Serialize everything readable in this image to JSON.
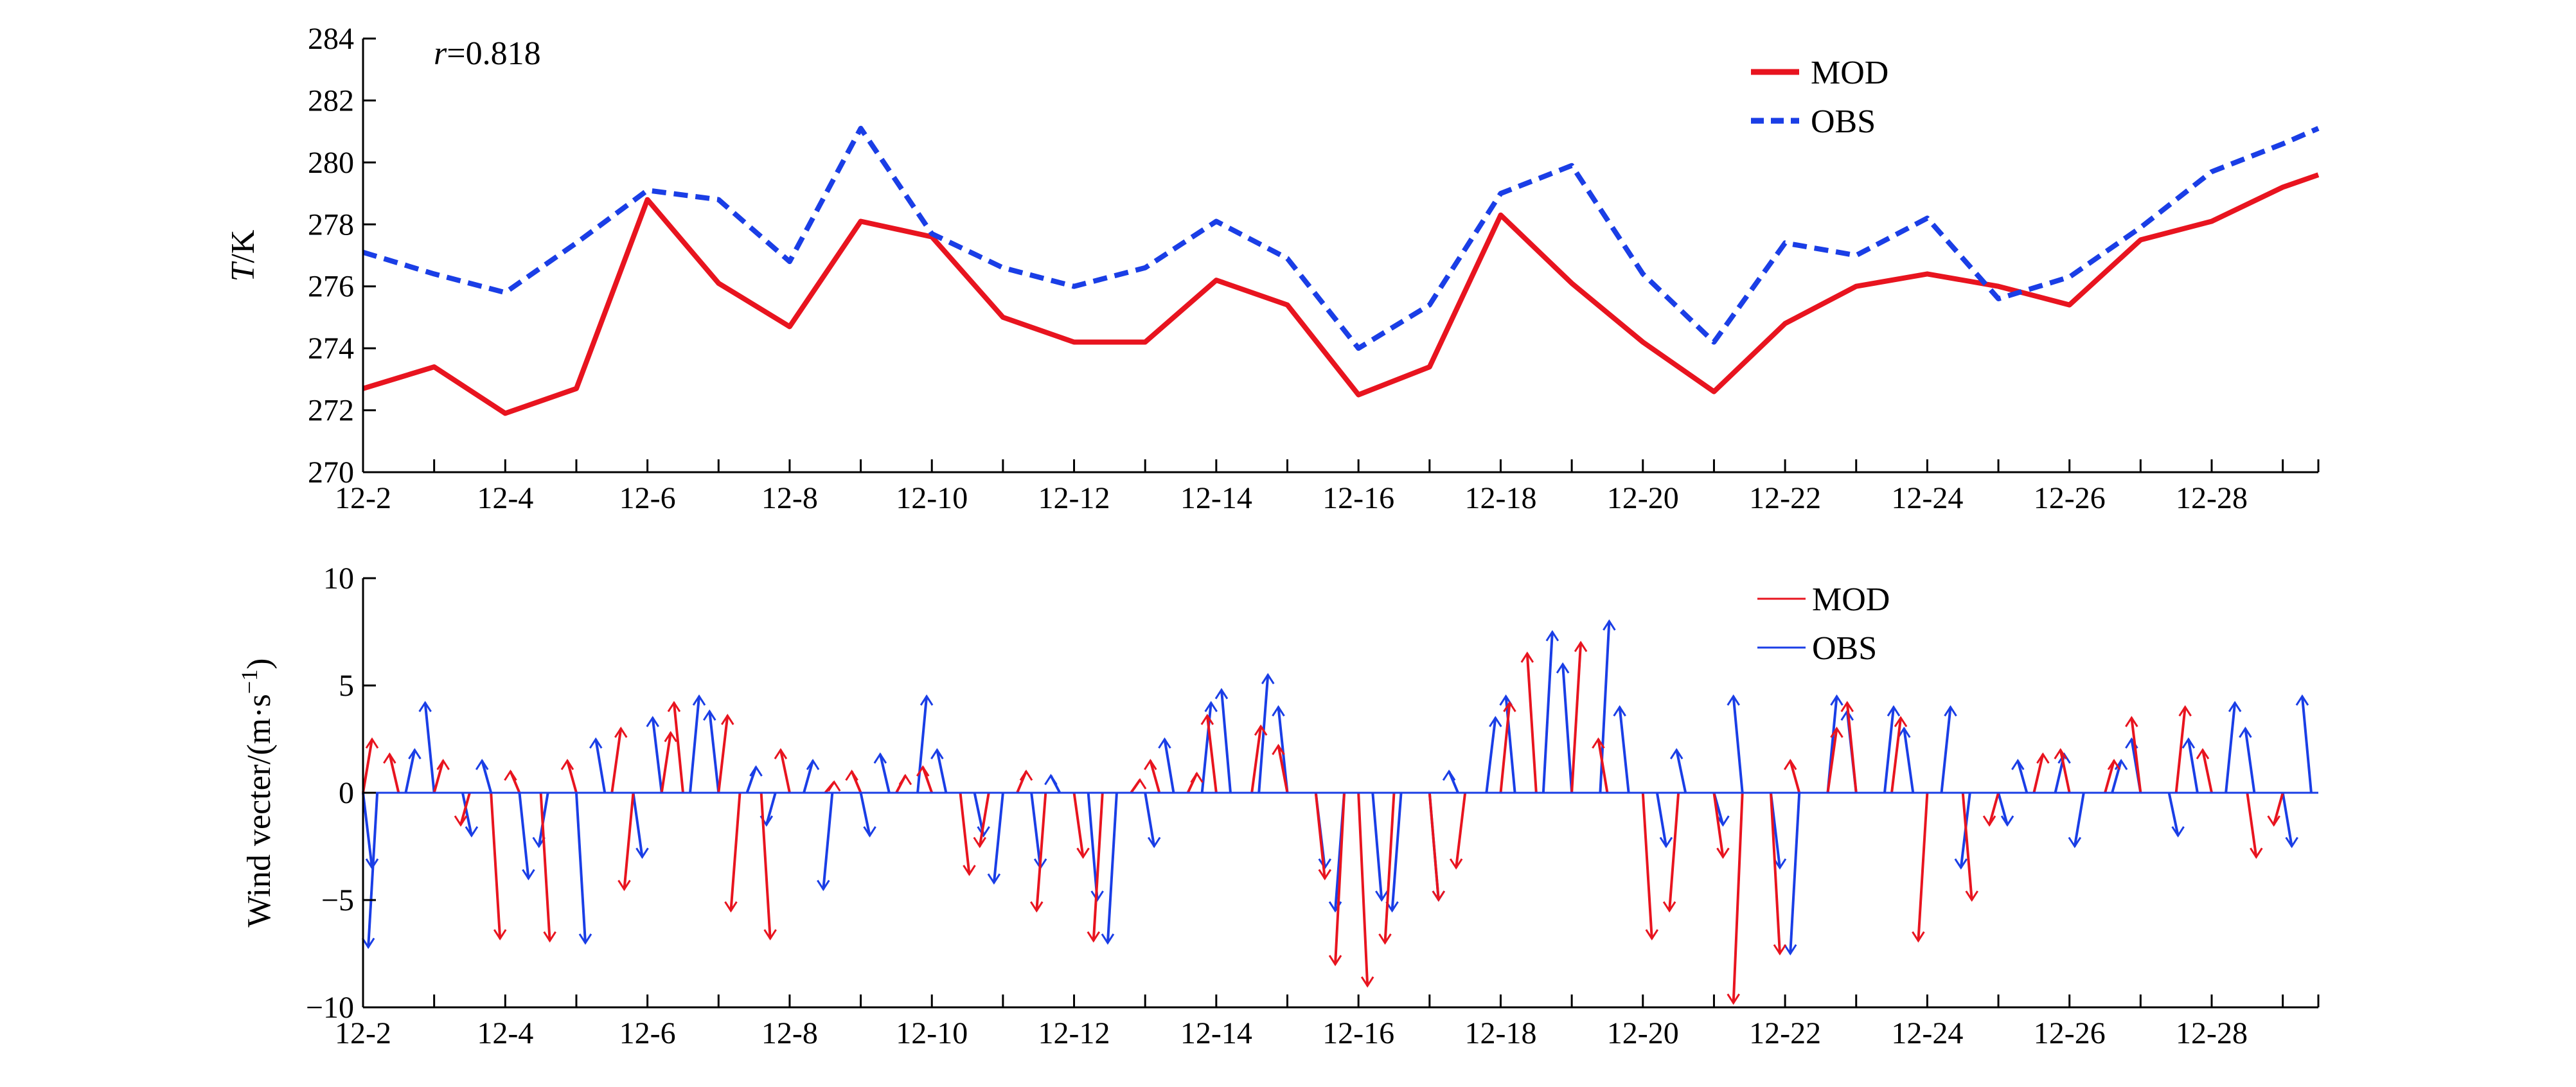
{
  "chart_data": [
    {
      "type": "line",
      "ylabel_italic": "T",
      "ylabel_unit": "/K",
      "annotation_italic": "r",
      "annotation_value": "=0.818",
      "ylim": [
        270,
        284
      ],
      "yticks": [
        "270",
        "272",
        "274",
        "276",
        "278",
        "280",
        "282",
        "284"
      ],
      "ytick_values": [
        270,
        272,
        274,
        276,
        278,
        280,
        282,
        284
      ],
      "xlim": [
        2,
        29.5
      ],
      "xtick_values": [
        2,
        4,
        6,
        8,
        10,
        12,
        14,
        16,
        18,
        20,
        22,
        24,
        26,
        28
      ],
      "xtick_labels": [
        "12-2",
        "12-4",
        "12-6",
        "12-8",
        "12-10",
        "12-12",
        "12-14",
        "12-16",
        "12-18",
        "12-20",
        "12-22",
        "12-24",
        "12-26",
        "12-28"
      ],
      "legend": [
        "MOD",
        "OBS"
      ],
      "legend_position": "top-right",
      "series": [
        {
          "name": "MOD",
          "color": "#e8141f",
          "dash": "solid",
          "x": [
            2,
            3,
            4,
            5,
            6,
            7,
            8,
            9,
            10,
            11,
            12,
            13,
            14,
            15,
            16,
            17,
            18,
            19,
            20,
            21,
            22,
            23,
            24,
            25,
            26,
            27,
            28,
            29,
            29.5
          ],
          "values": [
            272.7,
            273.4,
            271.9,
            272.7,
            278.8,
            276.1,
            274.7,
            278.1,
            277.6,
            275.0,
            274.2,
            274.2,
            276.2,
            275.4,
            272.5,
            273.4,
            278.3,
            276.1,
            274.2,
            272.6,
            274.8,
            276.0,
            276.4,
            276.0,
            275.4,
            277.5,
            278.1,
            279.2,
            279.6
          ]
        },
        {
          "name": "OBS",
          "color": "#1a3ee6",
          "dash": "dashed",
          "x": [
            2,
            3,
            4,
            5,
            6,
            7,
            8,
            9,
            10,
            11,
            12,
            13,
            14,
            15,
            16,
            17,
            18,
            19,
            20,
            21,
            22,
            23,
            24,
            25,
            26,
            27,
            28,
            29,
            29.5
          ],
          "values": [
            277.1,
            276.4,
            275.8,
            277.4,
            279.1,
            278.8,
            276.8,
            281.1,
            277.7,
            276.6,
            276.0,
            276.6,
            278.1,
            276.9,
            274.0,
            275.4,
            279.0,
            279.9,
            276.4,
            274.2,
            277.4,
            277.0,
            278.2,
            275.6,
            276.3,
            277.9,
            279.7,
            280.6,
            281.1
          ]
        }
      ]
    },
    {
      "type": "vector",
      "ylabel": "Wind vecter/(m·s",
      "ylabel_sup": "−1",
      "ylabel_close": ")",
      "ylim": [
        -10,
        10
      ],
      "yticks": [
        "−10",
        "−5",
        "0",
        "5",
        "10"
      ],
      "ytick_values": [
        -10,
        -5,
        0,
        5,
        10
      ],
      "xlim": [
        2,
        29.5
      ],
      "xtick_values": [
        2,
        4,
        6,
        8,
        10,
        12,
        14,
        16,
        18,
        20,
        22,
        24,
        26,
        28
      ],
      "xtick_labels": [
        "12-2",
        "12-4",
        "12-6",
        "12-8",
        "12-10",
        "12-12",
        "12-14",
        "12-16",
        "12-18",
        "12-20",
        "12-22",
        "12-24",
        "12-26",
        "12-28"
      ],
      "legend": [
        "MOD",
        "OBS"
      ],
      "legend_position": "top-right",
      "series": [
        {
          "name": "MOD",
          "color": "#e8141f",
          "x": [
            2.0,
            2.5,
            3.0,
            3.5,
            3.8,
            4.2,
            4.5,
            5.0,
            5.5,
            5.8,
            6.2,
            6.5,
            7.0,
            7.3,
            7.6,
            8.0,
            8.5,
            9.0,
            9.5,
            10.0,
            10.4,
            10.8,
            11.2,
            11.6,
            12.0,
            12.4,
            12.8,
            13.2,
            13.6,
            14.0,
            14.5,
            15.0,
            15.4,
            15.8,
            16.0,
            16.5,
            17.0,
            17.5,
            18.0,
            18.5,
            19.0,
            19.5,
            20.0,
            20.5,
            21.0,
            21.4,
            21.8,
            22.2,
            22.6,
            23.0,
            23.5,
            24.0,
            24.5,
            25.0,
            25.5,
            26.0,
            26.5,
            27.0,
            27.5,
            28.0,
            28.5,
            29.0
          ],
          "values": [
            2.5,
            1.8,
            1.5,
            -1.5,
            -6.8,
            1.0,
            -6.9,
            1.5,
            3.0,
            -4.5,
            2.8,
            4.2,
            3.6,
            -5.5,
            -6.8,
            2.0,
            0.5,
            1.0,
            0.8,
            1.2,
            -3.8,
            -2.5,
            1.0,
            -5.5,
            -3.0,
            -6.9,
            0.6,
            1.5,
            0.9,
            3.6,
            3.1,
            2.2,
            -4.0,
            -8.0,
            -9.0,
            -7.0,
            -5.0,
            -3.5,
            4.2,
            6.5,
            7.0,
            2.5,
            -6.8,
            -5.5,
            -3.0,
            -9.8,
            -7.5,
            1.5,
            3.0,
            4.2,
            3.5,
            -6.9,
            -5.0,
            -1.5,
            1.8,
            2.0,
            1.5,
            3.5,
            4.0,
            2.0,
            -3.0,
            -1.5
          ]
        },
        {
          "name": "OBS",
          "color": "#1a3ee6",
          "x": [
            2.0,
            2.2,
            2.6,
            3.0,
            3.4,
            3.8,
            4.2,
            4.6,
            5.0,
            5.4,
            5.8,
            6.2,
            6.6,
            7.0,
            7.4,
            7.8,
            8.2,
            8.6,
            9.0,
            9.4,
            9.8,
            10.2,
            10.6,
            11.0,
            11.4,
            11.8,
            12.2,
            12.6,
            13.0,
            13.4,
            13.8,
            14.2,
            14.6,
            15.0,
            15.4,
            15.8,
            16.2,
            16.6,
            17.0,
            17.4,
            17.8,
            18.2,
            18.6,
            19.0,
            19.4,
            19.8,
            20.2,
            20.6,
            21.0,
            21.4,
            21.8,
            22.2,
            22.6,
            23.0,
            23.4,
            23.8,
            24.2,
            24.6,
            25.0,
            25.4,
            25.8,
            26.2,
            26.6,
            27.0,
            27.4,
            27.8,
            28.2,
            28.6,
            29.0,
            29.4
          ],
          "values": [
            -3.5,
            -7.2,
            2.0,
            4.2,
            -2.0,
            1.5,
            -4.0,
            -2.5,
            -7.0,
            2.5,
            -3.0,
            3.5,
            4.5,
            3.8,
            1.2,
            -1.5,
            1.5,
            -4.5,
            -2.0,
            1.8,
            4.5,
            2.0,
            -2.0,
            -4.2,
            -3.5,
            0.8,
            -5.0,
            -7.0,
            -2.5,
            2.5,
            4.2,
            4.8,
            5.5,
            4.0,
            -3.5,
            -5.5,
            -5.0,
            -5.5,
            -5.0,
            1.0,
            3.5,
            4.5,
            7.5,
            6.0,
            8.0,
            4.0,
            -2.5,
            2.0,
            -1.5,
            4.5,
            -3.5,
            -7.5,
            4.5,
            3.8,
            4.0,
            3.0,
            4.0,
            -3.5,
            -1.5,
            1.5,
            1.8,
            -2.5,
            1.5,
            2.5,
            -2.0,
            2.5,
            4.2,
            3.0,
            -2.5,
            4.5
          ]
        }
      ]
    }
  ]
}
